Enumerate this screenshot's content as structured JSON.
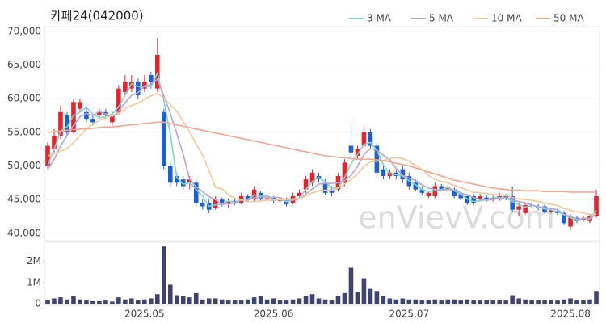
{
  "chart_data": {
    "type": "candlestick",
    "title": "카페24(042000)",
    "watermark": "enVievV.com",
    "categories": [
      null,
      null,
      null,
      null,
      null,
      null,
      null,
      null,
      null,
      null,
      null,
      null,
      null,
      null,
      null,
      "2025.05",
      null,
      null,
      null,
      null,
      null,
      null,
      null,
      null,
      null,
      null,
      null,
      null,
      null,
      null,
      null,
      null,
      null,
      null,
      null,
      "2025.06",
      null,
      null,
      null,
      null,
      null,
      null,
      null,
      null,
      null,
      null,
      null,
      null,
      null,
      null,
      null,
      null,
      null,
      null,
      null,
      null,
      "2025.07",
      null,
      null,
      null,
      null,
      null,
      null,
      null,
      null,
      null,
      null,
      null,
      null,
      null,
      null,
      null,
      null,
      null,
      null,
      null,
      null,
      null,
      null,
      null,
      null,
      "2025.08",
      null,
      null,
      null,
      null
    ],
    "open": [
      50000,
      52500,
      54500,
      57500,
      55000,
      58500,
      58000,
      57000,
      57500,
      58000,
      56500,
      58000,
      61000,
      61500,
      62500,
      61500,
      63500,
      61500,
      58000,
      50000,
      48500,
      48000,
      47500,
      47500,
      44500,
      44500,
      43700,
      45000,
      44300,
      44800,
      44500,
      45500,
      45000,
      46000,
      45000,
      45200,
      44800,
      45000,
      44500,
      45500,
      46500,
      47500,
      48500,
      47500,
      46500,
      46500,
      47500,
      53000,
      51500,
      53000,
      55000,
      53000,
      49500,
      48500,
      49000,
      49500,
      48500,
      47500,
      46500,
      45500,
      45500,
      47000,
      46500,
      46500,
      45800,
      45500,
      45500,
      45000,
      45300,
      45000,
      45000,
      45500,
      45500,
      43500,
      43000,
      44200,
      44000,
      44000,
      43200,
      43300,
      43000,
      41000,
      42300,
      42000,
      41800,
      42500
    ],
    "high": [
      53500,
      55500,
      59000,
      58000,
      60000,
      60000,
      58500,
      57500,
      58500,
      58500,
      58000,
      62000,
      63500,
      63500,
      63000,
      63500,
      64000,
      69000,
      58500,
      50500,
      49000,
      48500,
      48500,
      48000,
      45000,
      45000,
      45500,
      45300,
      45200,
      45200,
      46000,
      45800,
      47000,
      46300,
      45600,
      45500,
      45400,
      45300,
      46000,
      46500,
      48500,
      49500,
      49000,
      48000,
      47000,
      49000,
      51000,
      56500,
      53000,
      56000,
      55500,
      53500,
      50000,
      49500,
      49500,
      50000,
      49000,
      48000,
      47000,
      46300,
      47500,
      47300,
      47200,
      46800,
      46000,
      45800,
      45800,
      45800,
      45600,
      45600,
      46000,
      45800,
      47000,
      44500,
      44500,
      44500,
      44300,
      44300,
      43800,
      43600,
      43300,
      42800,
      42600,
      42600,
      42800,
      46500
    ],
    "low": [
      49500,
      52000,
      54000,
      54500,
      54800,
      58000,
      56500,
      56000,
      57000,
      57000,
      56000,
      57500,
      60500,
      61000,
      60000,
      61000,
      61500,
      61000,
      49500,
      47000,
      47000,
      46500,
      46500,
      44000,
      43500,
      43000,
      43500,
      44000,
      43800,
      44200,
      44300,
      44700,
      44800,
      44700,
      44700,
      44500,
      44500,
      44000,
      44300,
      45200,
      46000,
      47000,
      47500,
      45700,
      45500,
      46200,
      47000,
      51000,
      51000,
      52500,
      52500,
      48500,
      48000,
      48000,
      48000,
      47500,
      46500,
      46200,
      45600,
      45200,
      45200,
      46200,
      46200,
      45200,
      44900,
      44200,
      44200,
      44800,
      44700,
      44700,
      44800,
      44900,
      43200,
      42500,
      42800,
      43700,
      43400,
      42900,
      42900,
      42700,
      41200,
      40500,
      41500,
      41700,
      41500,
      42300
    ],
    "close": [
      53000,
      54500,
      58000,
      55000,
      59500,
      59500,
      57000,
      56500,
      58000,
      57500,
      57500,
      61500,
      62500,
      62500,
      60500,
      62500,
      62500,
      66500,
      50000,
      47500,
      47500,
      47000,
      48000,
      44500,
      44000,
      43500,
      45000,
      44500,
      44800,
      44500,
      45500,
      45000,
      46500,
      45000,
      45200,
      44800,
      45000,
      44300,
      45500,
      46000,
      48000,
      49000,
      48000,
      46000,
      46000,
      48500,
      50500,
      52000,
      52500,
      55000,
      53000,
      49000,
      48500,
      49000,
      48500,
      48000,
      47000,
      46500,
      46000,
      46000,
      47000,
      46500,
      46800,
      45500,
      45200,
      44500,
      44500,
      45500,
      45000,
      45300,
      45500,
      45200,
      43500,
      44000,
      44200,
      44000,
      43700,
      43200,
      43500,
      43000,
      41500,
      42500,
      41800,
      42300,
      42500,
      45500
    ],
    "up_color": "#e8222b",
    "down_color": "#1e5fd6",
    "series": [
      {
        "name": "3 MA",
        "color": "#7fd3cf",
        "values": [
          50000,
          52500,
          55200,
          55800,
          57500,
          58000,
          58700,
          57700,
          57200,
          57300,
          57700,
          58800,
          60500,
          62200,
          61800,
          61800,
          61800,
          63800,
          59700,
          54700,
          48300,
          47300,
          47500,
          46500,
          45500,
          44000,
          44200,
          44300,
          44800,
          44600,
          44900,
          45000,
          45700,
          45500,
          45600,
          45000,
          45000,
          44700,
          44900,
          45300,
          46500,
          47700,
          48300,
          47700,
          46700,
          46800,
          48300,
          50300,
          51700,
          53200,
          53500,
          52300,
          50200,
          48800,
          48700,
          48500,
          47800,
          47200,
          46500,
          46200,
          46300,
          46500,
          46800,
          46300,
          45800,
          45100,
          44700,
          44800,
          45000,
          45300,
          45300,
          45300,
          44700,
          44200,
          43900,
          44100,
          44000,
          43600,
          43500,
          43200,
          42700,
          42300,
          41900,
          42200,
          42200,
          43400
        ]
      },
      {
        "name": "5 MA",
        "color": "#b5a5d0",
        "values": [
          49500,
          51000,
          53000,
          54500,
          56000,
          57300,
          57800,
          57500,
          58100,
          57700,
          57300,
          58200,
          59400,
          60500,
          60900,
          61900,
          62100,
          62900,
          60400,
          57800,
          54800,
          51700,
          48000,
          46900,
          46200,
          45400,
          45000,
          44300,
          44400,
          44500,
          44900,
          44900,
          45300,
          45300,
          45400,
          45300,
          45300,
          44900,
          44900,
          45100,
          45800,
          46600,
          47300,
          47400,
          47400,
          47500,
          47800,
          48600,
          49900,
          51700,
          52600,
          52300,
          51600,
          50900,
          49600,
          48600,
          48200,
          47800,
          47200,
          46700,
          46500,
          46400,
          46500,
          46400,
          46000,
          45700,
          45300,
          45000,
          44900,
          45000,
          45200,
          45300,
          44900,
          44700,
          44500,
          44200,
          43900,
          43800,
          43700,
          43500,
          42800,
          42500,
          42100,
          42200,
          42100,
          42900
        ]
      },
      {
        "name": "10 MA",
        "color": "#f3c898",
        "values": [
          51500,
          51800,
          52200,
          52600,
          53500,
          54500,
          55500,
          56200,
          56800,
          57200,
          57500,
          57800,
          58500,
          59000,
          59300,
          59900,
          60400,
          60800,
          60100,
          59100,
          58100,
          56600,
          55100,
          53300,
          51600,
          49300,
          46800,
          46600,
          45700,
          45200,
          45000,
          44700,
          44700,
          44800,
          44900,
          44900,
          45000,
          45000,
          45100,
          45200,
          45500,
          46000,
          46300,
          46400,
          46400,
          46700,
          47300,
          48000,
          48800,
          49900,
          50600,
          50700,
          50800,
          51100,
          51200,
          51100,
          50700,
          50100,
          49500,
          48600,
          48000,
          47700,
          47500,
          47100,
          46800,
          46400,
          46100,
          46000,
          45900,
          45800,
          45700,
          45600,
          45300,
          45100,
          45000,
          44900,
          44700,
          44500,
          44300,
          44100,
          43700,
          43400,
          43200,
          43000,
          42800,
          42900
        ]
      },
      {
        "name": "50 MA",
        "color": "#f4a390",
        "values": [
          55000,
          55100,
          55200,
          55300,
          55400,
          55500,
          55500,
          55600,
          55700,
          55800,
          55800,
          55900,
          56000,
          56100,
          56200,
          56300,
          56400,
          56500,
          56500,
          56300,
          56100,
          55900,
          55700,
          55500,
          55300,
          55100,
          54900,
          54700,
          54500,
          54300,
          54100,
          53900,
          53700,
          53500,
          53300,
          53100,
          52900,
          52700,
          52500,
          52300,
          52100,
          51900,
          51700,
          51500,
          51400,
          51300,
          51200,
          51100,
          51000,
          51000,
          51000,
          50900,
          50800,
          50600,
          50400,
          50200,
          50000,
          49700,
          49400,
          49100,
          48800,
          48500,
          48200,
          47900,
          47700,
          47500,
          47300,
          47100,
          46900,
          46700,
          46600,
          46500,
          46400,
          46400,
          46300,
          46300,
          46300,
          46200,
          46200,
          46200,
          46200,
          46100,
          46100,
          46100,
          46100,
          46100
        ]
      }
    ],
    "ylim": [
      38900,
      70700
    ],
    "yticks": [
      {
        "value": 40000,
        "label": "40,000"
      },
      {
        "value": 45000,
        "label": "45,000"
      },
      {
        "value": 50000,
        "label": "50,000"
      },
      {
        "value": 55000,
        "label": "55,000"
      },
      {
        "value": 60000,
        "label": "60,000"
      },
      {
        "value": 65000,
        "label": "65,000"
      },
      {
        "value": 70000,
        "label": "70,000"
      }
    ],
    "grid": true,
    "volume": {
      "color": "#3f4370",
      "ylim": [
        0,
        2900000
      ],
      "yticks": [
        0,
        {
          "value": 1000000,
          "label": "1M"
        },
        {
          "value": 2000000,
          "label": "2M"
        }
      ],
      "values": [
        150000,
        250000,
        300000,
        200000,
        350000,
        200000,
        150000,
        120000,
        120000,
        150000,
        100000,
        300000,
        200000,
        250000,
        150000,
        200000,
        250000,
        450000,
        2700000,
        900000,
        400000,
        350000,
        300000,
        500000,
        200000,
        250000,
        250000,
        200000,
        150000,
        150000,
        150000,
        200000,
        300000,
        350000,
        200000,
        250000,
        150000,
        150000,
        200000,
        250000,
        350000,
        450000,
        250000,
        200000,
        150000,
        350000,
        500000,
        1700000,
        550000,
        1200000,
        700000,
        600000,
        350000,
        250000,
        200000,
        250000,
        200000,
        200000,
        150000,
        150000,
        200000,
        150000,
        200000,
        200000,
        150000,
        200000,
        150000,
        150000,
        150000,
        150000,
        150000,
        150000,
        400000,
        250000,
        200000,
        150000,
        150000,
        150000,
        150000,
        150000,
        200000,
        250000,
        150000,
        150000,
        200000,
        600000
      ]
    }
  }
}
